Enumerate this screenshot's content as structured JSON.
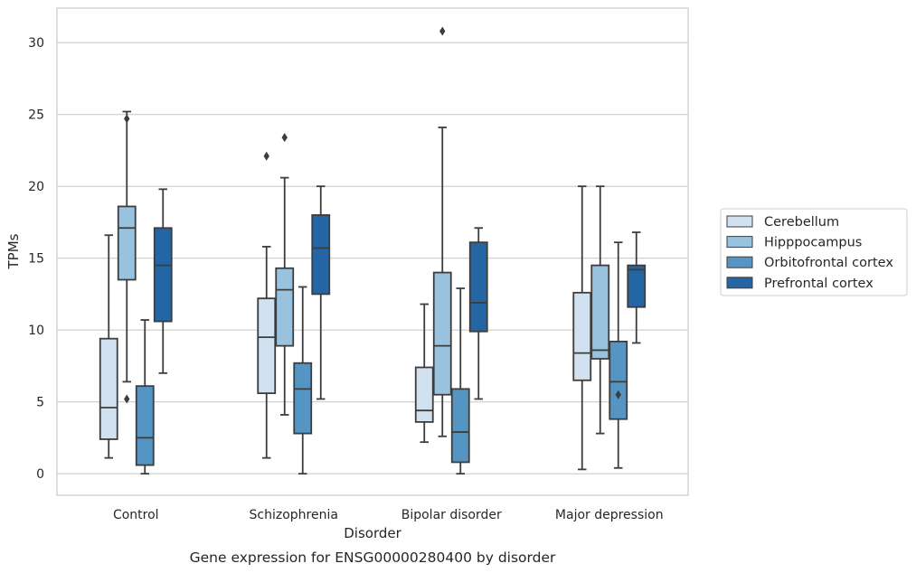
{
  "chart_data": {
    "type": "box",
    "caption": "Gene expression for ENSG00000280400 by disorder",
    "xlabel": "Disorder",
    "ylabel": "TPMs",
    "ylim": [
      -1.5,
      32.4
    ],
    "yticks": [
      0,
      5,
      10,
      15,
      20,
      25,
      30
    ],
    "grid": true,
    "legend_position": "right",
    "categories": [
      "Control",
      "Schizophrenia",
      "Bipolar disorder",
      "Major depression"
    ],
    "series": [
      {
        "name": "Cerebellum",
        "color": "#d1e1f0",
        "boxes": [
          {
            "whisker_low": 1.1,
            "q1": 2.4,
            "median": 4.6,
            "q3": 9.4,
            "whisker_high": 16.6,
            "outliers": []
          },
          {
            "whisker_low": 1.1,
            "q1": 5.6,
            "median": 9.5,
            "q3": 12.2,
            "whisker_high": 15.8,
            "outliers": [
              22.1
            ]
          },
          {
            "whisker_low": 2.2,
            "q1": 3.6,
            "median": 4.4,
            "q3": 7.4,
            "whisker_high": 11.8,
            "outliers": []
          },
          {
            "whisker_low": 0.3,
            "q1": 6.5,
            "median": 8.4,
            "q3": 12.6,
            "whisker_high": 20.0,
            "outliers": []
          }
        ]
      },
      {
        "name": "Hipppocampus",
        "color": "#99c2de",
        "boxes": [
          {
            "whisker_low": 6.4,
            "q1": 13.5,
            "median": 17.1,
            "q3": 18.6,
            "whisker_high": 25.2,
            "outliers": [
              5.2,
              24.7
            ]
          },
          {
            "whisker_low": 4.1,
            "q1": 8.9,
            "median": 12.8,
            "q3": 14.3,
            "whisker_high": 20.6,
            "outliers": [
              23.4
            ]
          },
          {
            "whisker_low": 2.6,
            "q1": 5.5,
            "median": 8.9,
            "q3": 14.0,
            "whisker_high": 24.1,
            "outliers": [
              30.8
            ]
          },
          {
            "whisker_low": 2.8,
            "q1": 8.0,
            "median": 8.6,
            "q3": 14.5,
            "whisker_high": 20.0,
            "outliers": []
          }
        ]
      },
      {
        "name": "Orbitofrontal cortex",
        "color": "#5595c4",
        "boxes": [
          {
            "whisker_low": 0.0,
            "q1": 0.6,
            "median": 2.5,
            "q3": 6.1,
            "whisker_high": 10.7,
            "outliers": []
          },
          {
            "whisker_low": 0.0,
            "q1": 2.8,
            "median": 5.9,
            "q3": 7.7,
            "whisker_high": 13.0,
            "outliers": []
          },
          {
            "whisker_low": 0.0,
            "q1": 0.8,
            "median": 2.9,
            "q3": 5.9,
            "whisker_high": 12.9,
            "outliers": []
          },
          {
            "whisker_low": 0.4,
            "q1": 3.8,
            "median": 6.4,
            "q3": 9.2,
            "whisker_high": 16.1,
            "outliers": [
              5.5
            ]
          }
        ]
      },
      {
        "name": "Prefrontal cortex",
        "color": "#2366a3",
        "boxes": [
          {
            "whisker_low": 7.0,
            "q1": 10.6,
            "median": 14.5,
            "q3": 17.1,
            "whisker_high": 19.8,
            "outliers": []
          },
          {
            "whisker_low": 5.2,
            "q1": 12.5,
            "median": 15.7,
            "q3": 18.0,
            "whisker_high": 20.0,
            "outliers": []
          },
          {
            "whisker_low": 5.2,
            "q1": 9.9,
            "median": 11.9,
            "q3": 16.1,
            "whisker_high": 17.1,
            "outliers": []
          },
          {
            "whisker_low": 9.1,
            "q1": 11.6,
            "median": 14.2,
            "q3": 14.5,
            "whisker_high": 16.8,
            "outliers": []
          }
        ]
      }
    ]
  }
}
